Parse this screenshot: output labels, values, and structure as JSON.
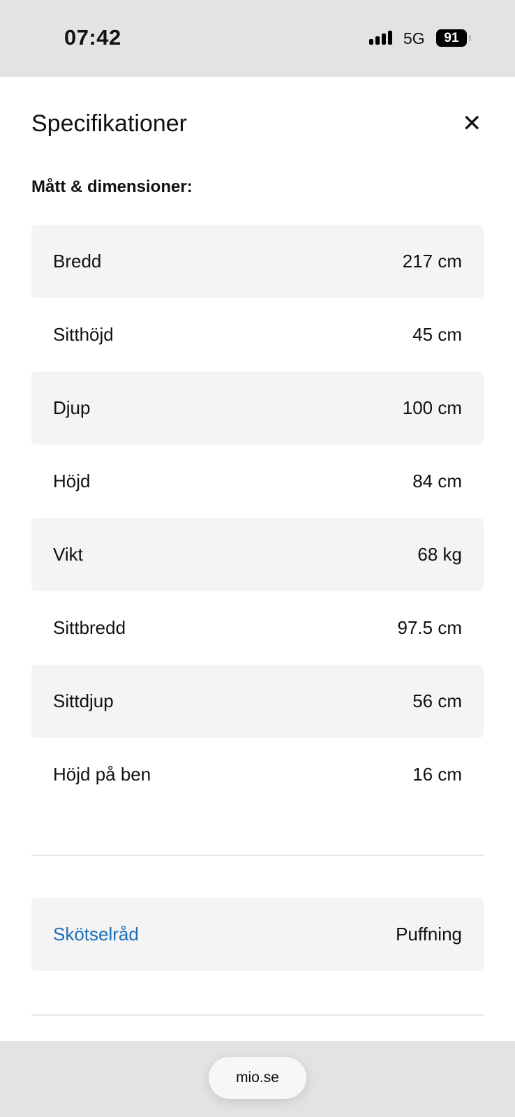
{
  "status_bar": {
    "time": "07:42",
    "network": "5G",
    "battery": "91"
  },
  "header": {
    "title": "Specifikationer",
    "close_icon": "close-icon"
  },
  "section_title": "Mått & dimensioner:",
  "specs": [
    {
      "label": "Bredd",
      "value": "217 cm"
    },
    {
      "label": "Sitthöjd",
      "value": "45 cm"
    },
    {
      "label": "Djup",
      "value": "100 cm"
    },
    {
      "label": "Höjd",
      "value": "84 cm"
    },
    {
      "label": "Vikt",
      "value": "68 kg"
    },
    {
      "label": "Sittbredd",
      "value": "97.5 cm"
    },
    {
      "label": "Sittdjup",
      "value": "56 cm"
    },
    {
      "label": "Höjd på ben",
      "value": "16 cm"
    }
  ],
  "care": {
    "label": "Skötselråd",
    "value": "Puffning",
    "link_color": "#1c6fb8"
  },
  "browser": {
    "url": "mio.se"
  }
}
